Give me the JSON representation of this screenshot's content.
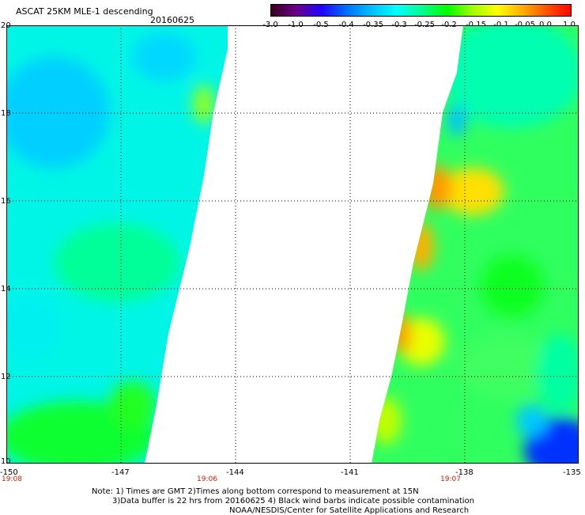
{
  "header": {
    "title": "ASCAT 25KM MLE-1 descending",
    "date": "20160625"
  },
  "colorbar": {
    "labels": [
      "-3.0",
      "-1.0",
      "-0.5",
      "-0.4",
      "-0.35",
      "-0.3",
      "-0.25",
      "-0.2",
      "-0.15",
      "-0.1",
      "-0.05",
      "0.0",
      "1.0"
    ],
    "colors": [
      "#3a0020",
      "#6a0088",
      "#2000ff",
      "#0070ff",
      "#00c0ff",
      "#00ffff",
      "#00ff90",
      "#00ff00",
      "#a0ff00",
      "#ffff00",
      "#ffb000",
      "#ff5000",
      "#ff0000"
    ]
  },
  "map": {
    "lat_labels": [
      "20",
      "18",
      "16",
      "14",
      "12",
      "10"
    ],
    "lon_labels": [
      "-150",
      "-147",
      "-144",
      "-141",
      "-138",
      "-135"
    ],
    "time_labels": [
      "19:08",
      "19:06",
      "19:07"
    ]
  },
  "notes": {
    "line1": "Note: 1) Times are GMT 2)Times along bottom correspond to measurement at 15N",
    "line2": "3)Data buffer is 22 hrs from 20160625 4) Black wind barbs indicate possible contamination",
    "line3": "NOAA/NESDIS/Center for Satellite Applications and Research"
  }
}
